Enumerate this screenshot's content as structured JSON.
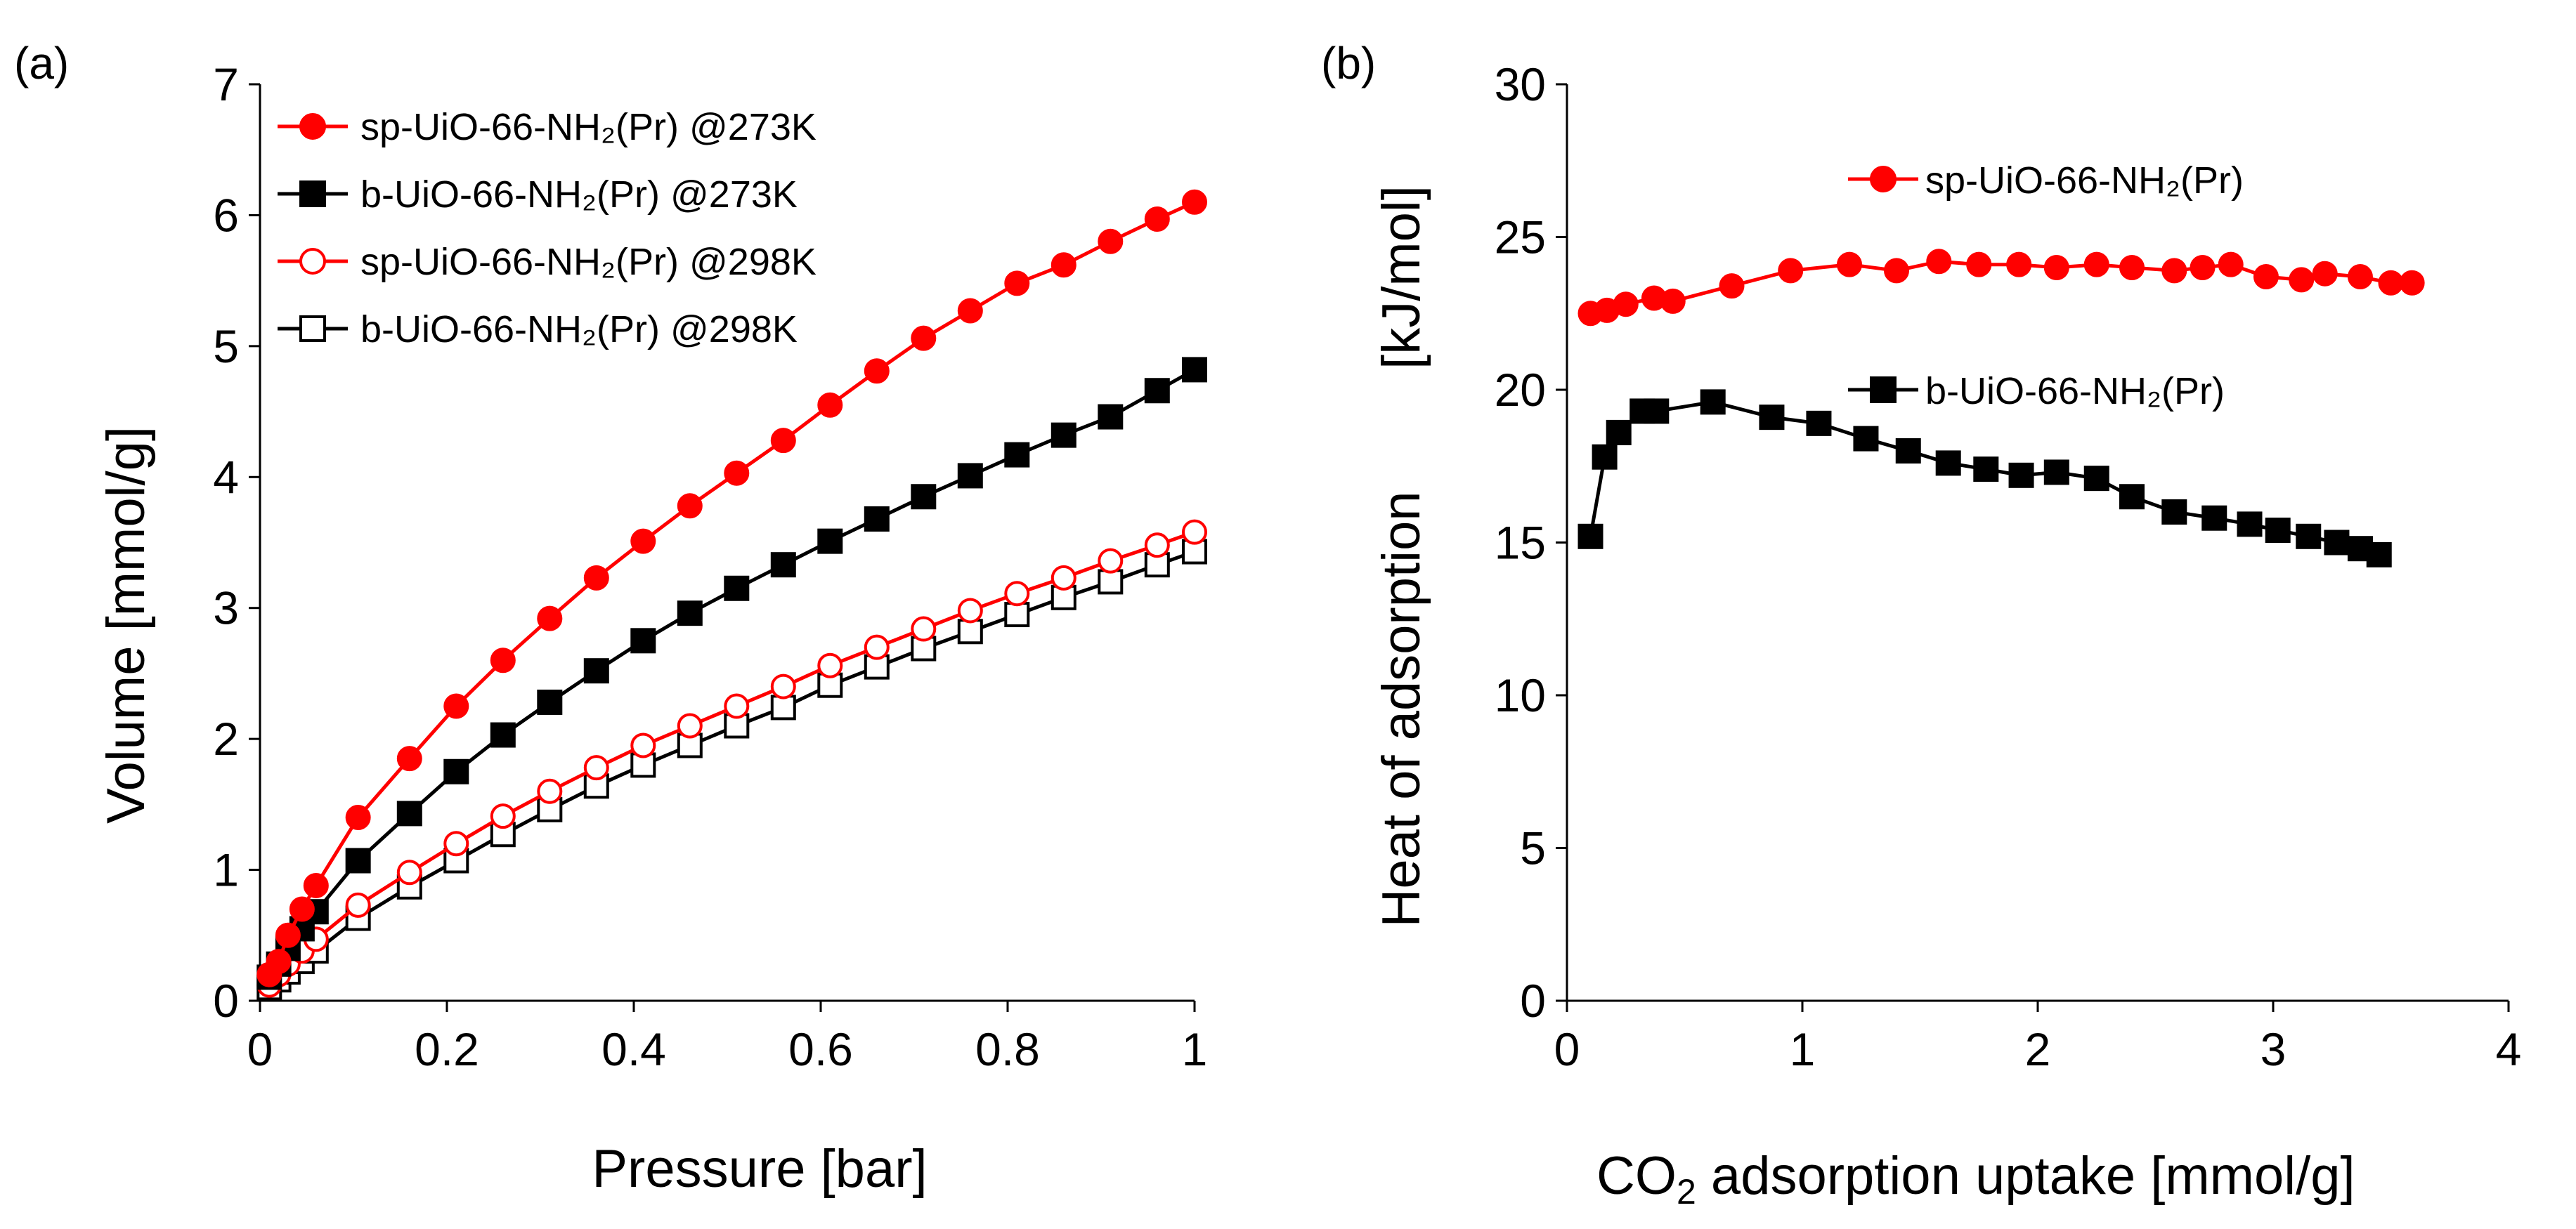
{
  "chart_data": [
    {
      "panel_label": "(a)",
      "type": "line",
      "xlabel": "Pressure [bar]",
      "ylabel": "Volume [mmol/g]",
      "xlim": [
        0,
        1
      ],
      "ylim": [
        0,
        7
      ],
      "xticks": [
        "0",
        "0.2",
        "0.4",
        "0.6",
        "0.8",
        "1"
      ],
      "yticks": [
        "0",
        "1",
        "2",
        "3",
        "4",
        "5",
        "6",
        "7"
      ],
      "legend_position": "top-left",
      "series": [
        {
          "name": "sp-UiO-66-NH₂(Pr) @273K",
          "color": "#ff0000",
          "marker": "circle",
          "filled": true,
          "x": [
            0.01,
            0.02,
            0.03,
            0.045,
            0.06,
            0.105,
            0.16,
            0.21,
            0.26,
            0.31,
            0.36,
            0.41,
            0.46,
            0.51,
            0.56,
            0.61,
            0.66,
            0.71,
            0.76,
            0.81,
            0.86,
            0.91,
            0.96,
            1.0
          ],
          "y": [
            0.2,
            0.3,
            0.5,
            0.7,
            0.88,
            1.4,
            1.85,
            2.25,
            2.6,
            2.92,
            3.23,
            3.51,
            3.78,
            4.03,
            4.28,
            4.55,
            4.81,
            5.06,
            5.27,
            5.48,
            5.62,
            5.8,
            5.97,
            6.1
          ]
        },
        {
          "name": "b-UiO-66-NH₂(Pr) @273K",
          "color": "#000000",
          "marker": "square",
          "filled": true,
          "x": [
            0.01,
            0.02,
            0.03,
            0.045,
            0.06,
            0.105,
            0.16,
            0.21,
            0.26,
            0.31,
            0.36,
            0.41,
            0.46,
            0.51,
            0.56,
            0.61,
            0.66,
            0.71,
            0.76,
            0.81,
            0.86,
            0.91,
            0.96,
            1.0
          ],
          "y": [
            0.18,
            0.28,
            0.4,
            0.55,
            0.68,
            1.07,
            1.43,
            1.75,
            2.03,
            2.28,
            2.52,
            2.75,
            2.96,
            3.15,
            3.33,
            3.51,
            3.68,
            3.85,
            4.01,
            4.17,
            4.32,
            4.46,
            4.66,
            4.82
          ]
        },
        {
          "name": "sp-UiO-66-NH₂(Pr) @298K",
          "color": "#ff0000",
          "marker": "circle",
          "filled": false,
          "x": [
            0.01,
            0.02,
            0.03,
            0.045,
            0.06,
            0.105,
            0.16,
            0.21,
            0.26,
            0.31,
            0.36,
            0.41,
            0.46,
            0.51,
            0.56,
            0.61,
            0.66,
            0.71,
            0.76,
            0.81,
            0.86,
            0.91,
            0.96,
            1.0
          ],
          "y": [
            0.12,
            0.2,
            0.28,
            0.38,
            0.47,
            0.73,
            0.98,
            1.2,
            1.41,
            1.6,
            1.78,
            1.95,
            2.1,
            2.25,
            2.4,
            2.56,
            2.7,
            2.84,
            2.98,
            3.11,
            3.23,
            3.36,
            3.48,
            3.58
          ]
        },
        {
          "name": "b-UiO-66-NH₂(Pr) @298K",
          "color": "#000000",
          "marker": "square",
          "filled": false,
          "x": [
            0.01,
            0.02,
            0.03,
            0.045,
            0.06,
            0.105,
            0.16,
            0.21,
            0.26,
            0.31,
            0.36,
            0.41,
            0.46,
            0.51,
            0.56,
            0.61,
            0.66,
            0.71,
            0.76,
            0.81,
            0.86,
            0.91,
            0.96,
            1.0
          ],
          "y": [
            0.1,
            0.16,
            0.22,
            0.3,
            0.38,
            0.63,
            0.87,
            1.07,
            1.27,
            1.46,
            1.64,
            1.8,
            1.95,
            2.1,
            2.24,
            2.41,
            2.55,
            2.69,
            2.82,
            2.95,
            3.08,
            3.2,
            3.33,
            3.43
          ]
        }
      ]
    },
    {
      "panel_label": "(b)",
      "type": "line",
      "xlabel_main": "CO",
      "xlabel_sub": "2",
      "xlabel_rest": " adsorption uptake [mmol/g]",
      "ylabel_left": "Heat of adsorption",
      "ylabel_right": "[kJ/mol]",
      "xlim": [
        0,
        4
      ],
      "ylim": [
        0,
        30
      ],
      "xticks": [
        "0",
        "1",
        "2",
        "3",
        "4"
      ],
      "yticks": [
        "0",
        "5",
        "10",
        "15",
        "20",
        "25",
        "30"
      ],
      "legend_position": "inline",
      "series": [
        {
          "name": "sp-UiO-66-NH₂(Pr)",
          "color": "#ff0000",
          "marker": "circle",
          "filled": true,
          "x": [
            0.1,
            0.17,
            0.25,
            0.37,
            0.45,
            0.7,
            0.95,
            1.2,
            1.4,
            1.58,
            1.75,
            1.92,
            2.08,
            2.25,
            2.4,
            2.58,
            2.7,
            2.82,
            2.97,
            3.12,
            3.22,
            3.37,
            3.5,
            3.59
          ],
          "y": [
            22.5,
            22.6,
            22.8,
            23.0,
            22.9,
            23.4,
            23.9,
            24.1,
            23.9,
            24.2,
            24.1,
            24.1,
            24.0,
            24.1,
            24.0,
            23.9,
            24.0,
            24.1,
            23.7,
            23.6,
            23.8,
            23.7,
            23.5,
            23.5
          ]
        },
        {
          "name": "b-UiO-66-NH₂(Pr)",
          "color": "#000000",
          "marker": "square",
          "filled": true,
          "x": [
            0.1,
            0.16,
            0.22,
            0.32,
            0.38,
            0.62,
            0.87,
            1.07,
            1.27,
            1.45,
            1.62,
            1.78,
            1.93,
            2.08,
            2.25,
            2.4,
            2.58,
            2.75,
            2.9,
            3.02,
            3.15,
            3.27,
            3.37,
            3.45
          ],
          "y": [
            15.2,
            17.8,
            18.6,
            19.3,
            19.3,
            19.6,
            19.1,
            18.9,
            18.4,
            18.0,
            17.6,
            17.4,
            17.2,
            17.3,
            17.1,
            16.5,
            16.0,
            15.8,
            15.6,
            15.4,
            15.2,
            15.0,
            14.8,
            14.6
          ]
        }
      ]
    }
  ]
}
